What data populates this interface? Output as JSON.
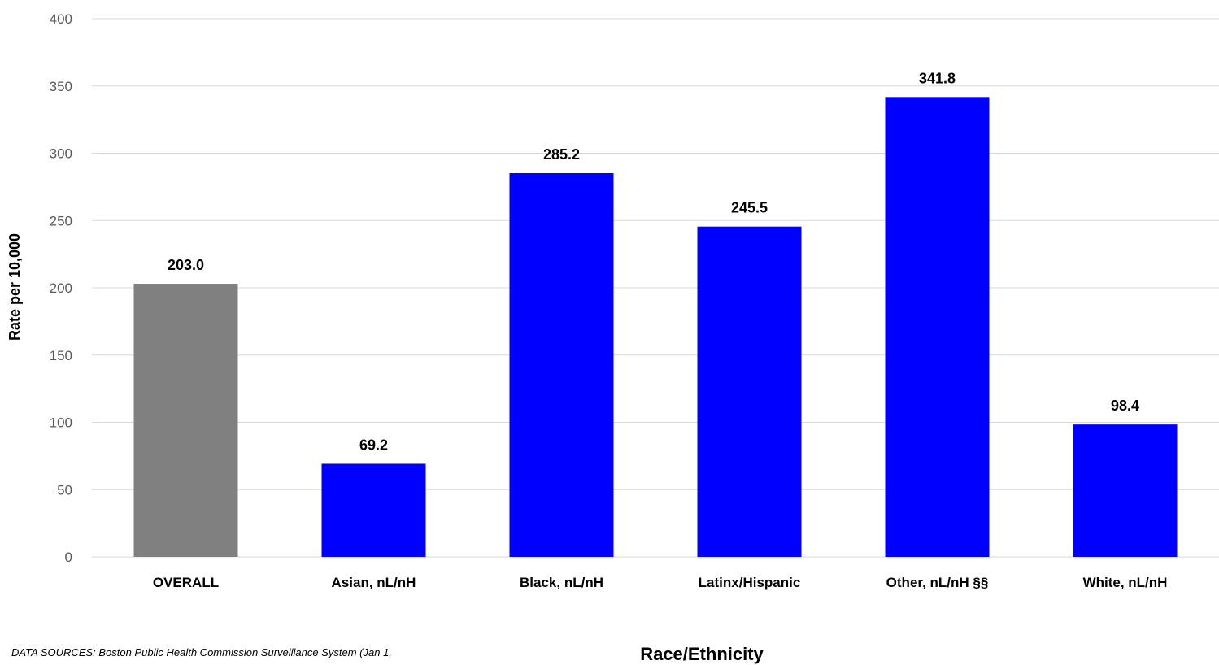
{
  "chart_data": {
    "type": "bar",
    "title": "",
    "xlabel": "Race/Ethnicity",
    "ylabel": "Rate per 10,000",
    "ylim": [
      0,
      400
    ],
    "yticks": [
      0,
      50,
      100,
      150,
      200,
      250,
      300,
      350,
      400
    ],
    "grid": true,
    "categories": [
      "OVERALL",
      "Asian, nL/nH",
      "Black, nL/nH",
      "Latinx/Hispanic",
      "Other, nL/nH §§",
      "White, nL/nH"
    ],
    "values": [
      203.0,
      69.2,
      285.2,
      245.5,
      341.8,
      98.4
    ],
    "data_labels": [
      "203.0",
      "69.2",
      "285.2",
      "245.5",
      "341.8",
      "98.4"
    ],
    "bar_colors": [
      "#808080",
      "#0000ff",
      "#0000ff",
      "#0000ff",
      "#0000ff",
      "#0000ff"
    ]
  },
  "source_note": "DATA SOURCES: Boston Public Health Commission Surveillance System (Jan 1,"
}
